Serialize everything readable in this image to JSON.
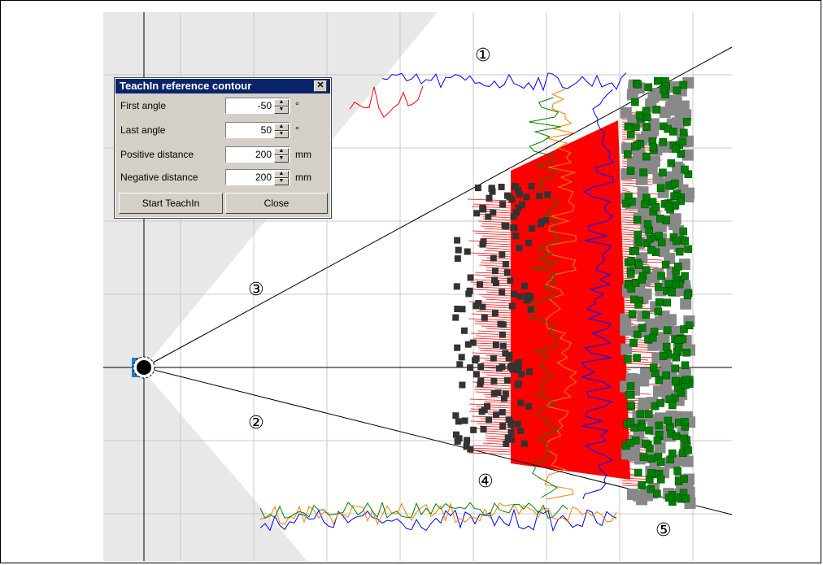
{
  "dialog": {
    "title": "TeachIn reference contour",
    "close_glyph": "✕",
    "fields": [
      {
        "label": "First angle",
        "value": "-50",
        "unit": "°"
      },
      {
        "label": "Last angle",
        "value": "50",
        "unit": "°"
      },
      {
        "label": "Positive distance",
        "value": "200",
        "unit": "mm"
      },
      {
        "label": "Negative distance",
        "value": "200",
        "unit": "mm"
      }
    ],
    "start_button": "Start TeachIn",
    "close_button": "Close"
  },
  "annotations": {
    "n1": "①",
    "n2": "②",
    "n3": "③",
    "n4": "④",
    "n5": "⑤"
  },
  "colors": {
    "field_fill": "#ff0000",
    "scan_blue": "#0000ff",
    "scan_orange": "#ff8000",
    "scan_green": "#008000",
    "green_points": "#008000",
    "dark_points": "#333333",
    "grid": "#c8c8c8",
    "shade": "#e8e8e8"
  }
}
